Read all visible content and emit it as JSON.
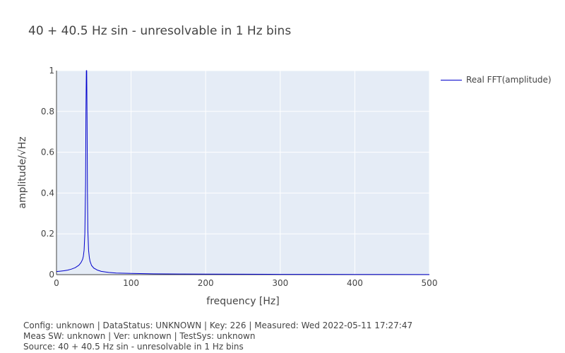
{
  "chart_data": {
    "type": "line",
    "title": "40 + 40.5 Hz sin - unresolvable in 1 Hz bins",
    "xlabel": "frequency [Hz]",
    "ylabel": "amplitude/√Hz",
    "xlim": [
      0,
      500
    ],
    "ylim": [
      0,
      1
    ],
    "xticks": [
      0,
      100,
      200,
      300,
      400,
      500
    ],
    "yticks": [
      0,
      0.2,
      0.4,
      0.6,
      0.8,
      1
    ],
    "xtick_labels": [
      "0",
      "100",
      "200",
      "300",
      "400",
      "500"
    ],
    "ytick_labels": [
      "0",
      "0.2",
      "0.4",
      "0.6",
      "0.8",
      "1"
    ],
    "grid": true,
    "legend_position": "top-right-outside",
    "series": [
      {
        "name": "Real FFT(amplitude)",
        "color": "#0000cc",
        "x": [
          0,
          5,
          10,
          15,
          20,
          25,
          30,
          33,
          35,
          36,
          37,
          38,
          39,
          39.5,
          40,
          40.5,
          41,
          41.5,
          42,
          43,
          44,
          45,
          47,
          50,
          55,
          60,
          70,
          80,
          100,
          130,
          170,
          200,
          250,
          300,
          350,
          400,
          450,
          500
        ],
        "y": [
          0.015,
          0.017,
          0.019,
          0.022,
          0.027,
          0.034,
          0.046,
          0.06,
          0.075,
          0.09,
          0.12,
          0.2,
          0.45,
          0.8,
          1.0,
          1.0,
          0.75,
          0.4,
          0.22,
          0.12,
          0.085,
          0.065,
          0.045,
          0.032,
          0.022,
          0.016,
          0.011,
          0.008,
          0.006,
          0.004,
          0.003,
          0.0025,
          0.002,
          0.0015,
          0.0012,
          0.001,
          0.0008,
          0.0005
        ]
      }
    ]
  },
  "footer": {
    "line1": "Config: unknown | DataStatus: UNKNOWN | Key: 226 | Measured: Wed 2022-05-11 17:27:47",
    "line2": "Meas SW: unknown | Ver: unknown | TestSys: unknown",
    "line3": "Source: 40 + 40.5 Hz sin - unresolvable in 1 Hz bins"
  }
}
